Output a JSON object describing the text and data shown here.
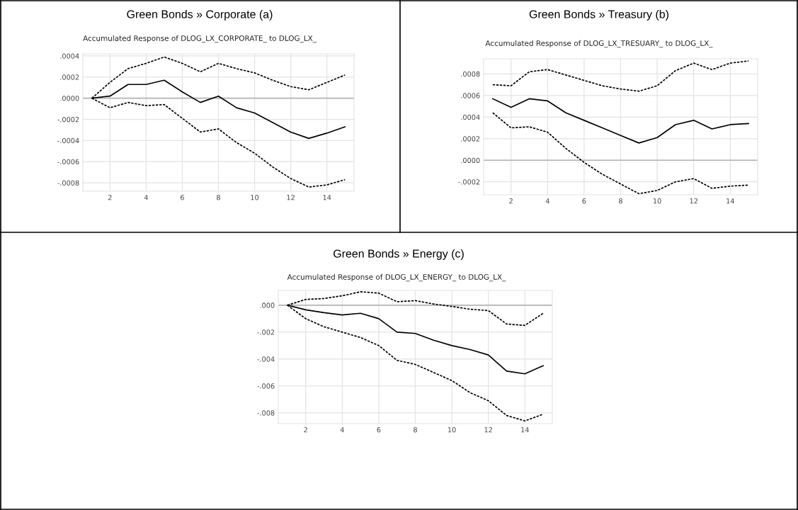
{
  "chart_data": [
    {
      "type": "line",
      "title": "Green Bonds » Corporate (a)",
      "subtitle": "Accumulated Response of DLOG_LX_CORPORATE_ to DLOG_LX_",
      "x": [
        1,
        2,
        3,
        4,
        5,
        6,
        7,
        8,
        9,
        10,
        11,
        12,
        13,
        14,
        15
      ],
      "series": [
        {
          "color": "#000000",
          "line_style": "solid",
          "values": [
            0,
            2e-05,
            0.00013,
            0.00013,
            0.00017,
            6e-05,
            -4e-05,
            2e-05,
            -9e-05,
            -0.00014,
            -0.00023,
            -0.00032,
            -0.00038,
            -0.00033,
            -0.00027
          ]
        },
        {
          "color": "#000000",
          "line_style": "dashed",
          "values": [
            0,
            0.00015,
            0.00028,
            0.00033,
            0.00039,
            0.00033,
            0.00025,
            0.00033,
            0.00028,
            0.00024,
            0.00017,
            0.00011,
            8e-05,
            0.00015,
            0.00022
          ]
        },
        {
          "color": "#000000",
          "line_style": "dashed",
          "values": [
            0,
            -9e-05,
            -4e-05,
            -7e-05,
            -6e-05,
            -0.00019,
            -0.00032,
            -0.00029,
            -0.00042,
            -0.00052,
            -0.00065,
            -0.00076,
            -0.00084,
            -0.00082,
            -0.00077
          ]
        }
      ],
      "xlim": [
        0.5,
        15.5
      ],
      "xticks": [
        2,
        4,
        6,
        8,
        10,
        12,
        14
      ],
      "ylim": [
        -0.00088,
        0.00042
      ],
      "yticks": [
        {
          "value": 0.0004,
          "label": ".0004"
        },
        {
          "value": 0.0002,
          "label": ".0002"
        },
        {
          "value": 0,
          "label": ".0000"
        },
        {
          "value": -0.0002,
          "label": "-.0002"
        },
        {
          "value": -0.0004,
          "label": "-.0004"
        },
        {
          "value": -0.0006,
          "label": "-.0006"
        },
        {
          "value": -0.0008,
          "label": "-.0008"
        }
      ],
      "ref_lines": [
        {
          "axis": "y",
          "value": 0,
          "color": "#b4b4b4"
        }
      ],
      "grid": true,
      "legend": false
    },
    {
      "type": "line",
      "title": "Green Bonds » Treasury (b)",
      "subtitle": "Accumulated Response of DLOG_LX_TRESUARY_ to DLOG_LX_",
      "x": [
        1,
        2,
        3,
        4,
        5,
        6,
        7,
        8,
        9,
        10,
        11,
        12,
        13,
        14,
        15
      ],
      "series": [
        {
          "color": "#000000",
          "line_style": "solid",
          "values": [
            0.00057,
            0.00049,
            0.00057,
            0.00055,
            0.00044,
            0.00037,
            0.0003,
            0.00023,
            0.00016,
            0.00021,
            0.00033,
            0.00037,
            0.00029,
            0.00033,
            0.00034
          ]
        },
        {
          "color": "#000000",
          "line_style": "dashed",
          "values": [
            0.0007,
            0.00069,
            0.00082,
            0.00084,
            0.00079,
            0.00074,
            0.00069,
            0.00066,
            0.00064,
            0.00069,
            0.00083,
            0.0009,
            0.00084,
            0.0009,
            0.00092
          ]
        },
        {
          "color": "#000000",
          "line_style": "dashed",
          "values": [
            0.00044,
            0.0003,
            0.00031,
            0.00026,
            0.00011,
            -2e-05,
            -0.00013,
            -0.00022,
            -0.00031,
            -0.00028,
            -0.0002,
            -0.00017,
            -0.00026,
            -0.00024,
            -0.00023
          ]
        }
      ],
      "xlim": [
        0.5,
        15.5
      ],
      "xticks": [
        2,
        4,
        6,
        8,
        10,
        12,
        14
      ],
      "ylim": [
        -0.00032,
        0.00094
      ],
      "yticks": [
        {
          "value": 0.0008,
          "label": ".0008"
        },
        {
          "value": 0.0006,
          "label": ".0006"
        },
        {
          "value": 0.0004,
          "label": ".0004"
        },
        {
          "value": 0.0002,
          "label": ".0002"
        },
        {
          "value": 0,
          "label": ".0000"
        },
        {
          "value": -0.0002,
          "label": "-.0002"
        }
      ],
      "ref_lines": [
        {
          "axis": "y",
          "value": 0,
          "color": "#b4b4b4"
        }
      ],
      "grid": true,
      "legend": false
    },
    {
      "type": "line",
      "title": "Green Bonds » Energy (c)",
      "subtitle": "Accumulated Response of DLOG_LX_ENERGY_ to DLOG_LX_",
      "x": [
        1,
        2,
        3,
        4,
        5,
        6,
        7,
        8,
        9,
        10,
        11,
        12,
        13,
        14,
        15
      ],
      "series": [
        {
          "color": "#000000",
          "line_style": "solid",
          "values": [
            0,
            -0.00034,
            -0.00055,
            -0.00072,
            -0.0006,
            -0.001,
            -0.002,
            -0.0021,
            -0.0026,
            -0.003,
            -0.0033,
            -0.0037,
            -0.0049,
            -0.0051,
            -0.0045
          ]
        },
        {
          "color": "#000000",
          "line_style": "dashed",
          "values": [
            0,
            0.00043,
            0.0005,
            0.0007,
            0.001,
            0.0009,
            0.00026,
            0.00034,
            9e-05,
            -9e-05,
            -0.0003,
            -0.0004,
            -0.0014,
            -0.0015,
            -0.0006
          ]
        },
        {
          "color": "#000000",
          "line_style": "dashed",
          "values": [
            0,
            -0.001,
            -0.0016,
            -0.002,
            -0.0024,
            -0.003,
            -0.0041,
            -0.0044,
            -0.005,
            -0.0056,
            -0.0065,
            -0.0071,
            -0.0082,
            -0.0086,
            -0.0081
          ]
        }
      ],
      "xlim": [
        0.5,
        15.5
      ],
      "xticks": [
        2,
        4,
        6,
        8,
        10,
        12,
        14
      ],
      "ylim": [
        -0.0088,
        0.0011
      ],
      "yticks": [
        {
          "value": 0,
          "label": ".000"
        },
        {
          "value": -0.002,
          "label": "-.002"
        },
        {
          "value": -0.004,
          "label": "-.004"
        },
        {
          "value": -0.006,
          "label": "-.006"
        },
        {
          "value": -0.008,
          "label": "-.008"
        }
      ],
      "ref_lines": [
        {
          "axis": "y",
          "value": 0,
          "color": "#b4b4b4"
        }
      ],
      "grid": true,
      "legend": false
    }
  ]
}
